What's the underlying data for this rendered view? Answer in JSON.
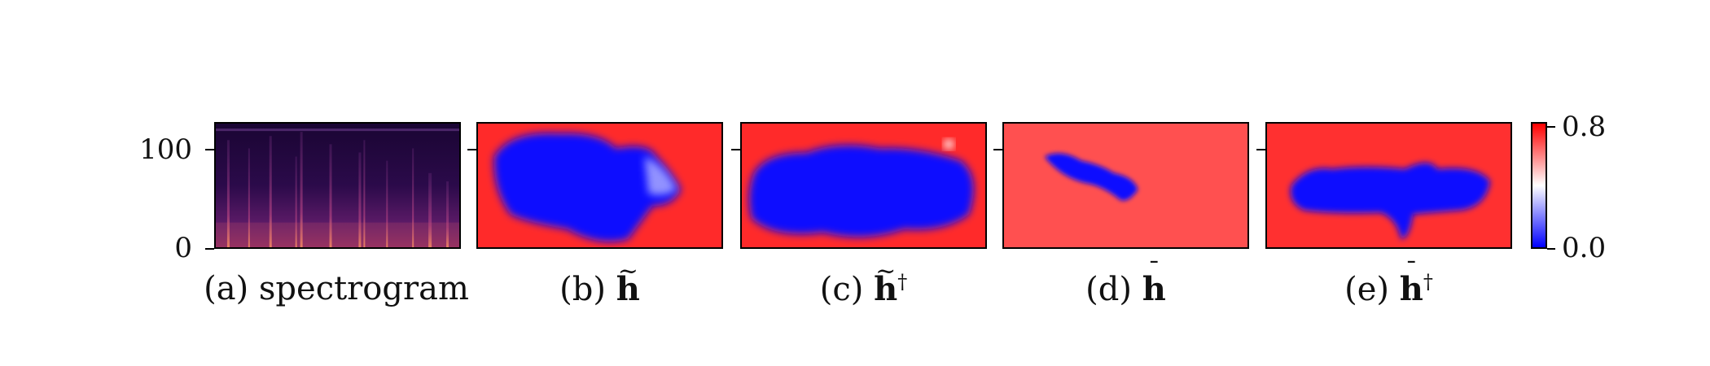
{
  "figure": {
    "y_axis": {
      "ticks": [
        "100",
        "0"
      ]
    },
    "colorbar": {
      "max_label": "0.8",
      "min_label": "0.0",
      "colors": {
        "low": "#0000ff",
        "mid": "#ffffff",
        "high": "#ff0000"
      }
    },
    "panels": [
      {
        "id": "a",
        "prefix": "(a)",
        "label": "spectrogram"
      },
      {
        "id": "b",
        "prefix": "(b)",
        "symbol": "h",
        "accent": "~",
        "dagger": ""
      },
      {
        "id": "c",
        "prefix": "(c)",
        "symbol": "h",
        "accent": "~",
        "dagger": "†"
      },
      {
        "id": "d",
        "prefix": "(d)",
        "symbol": "h",
        "accent": "¯",
        "dagger": ""
      },
      {
        "id": "e",
        "prefix": "(e)",
        "symbol": "h",
        "accent": "¯",
        "dagger": "†"
      }
    ]
  }
}
